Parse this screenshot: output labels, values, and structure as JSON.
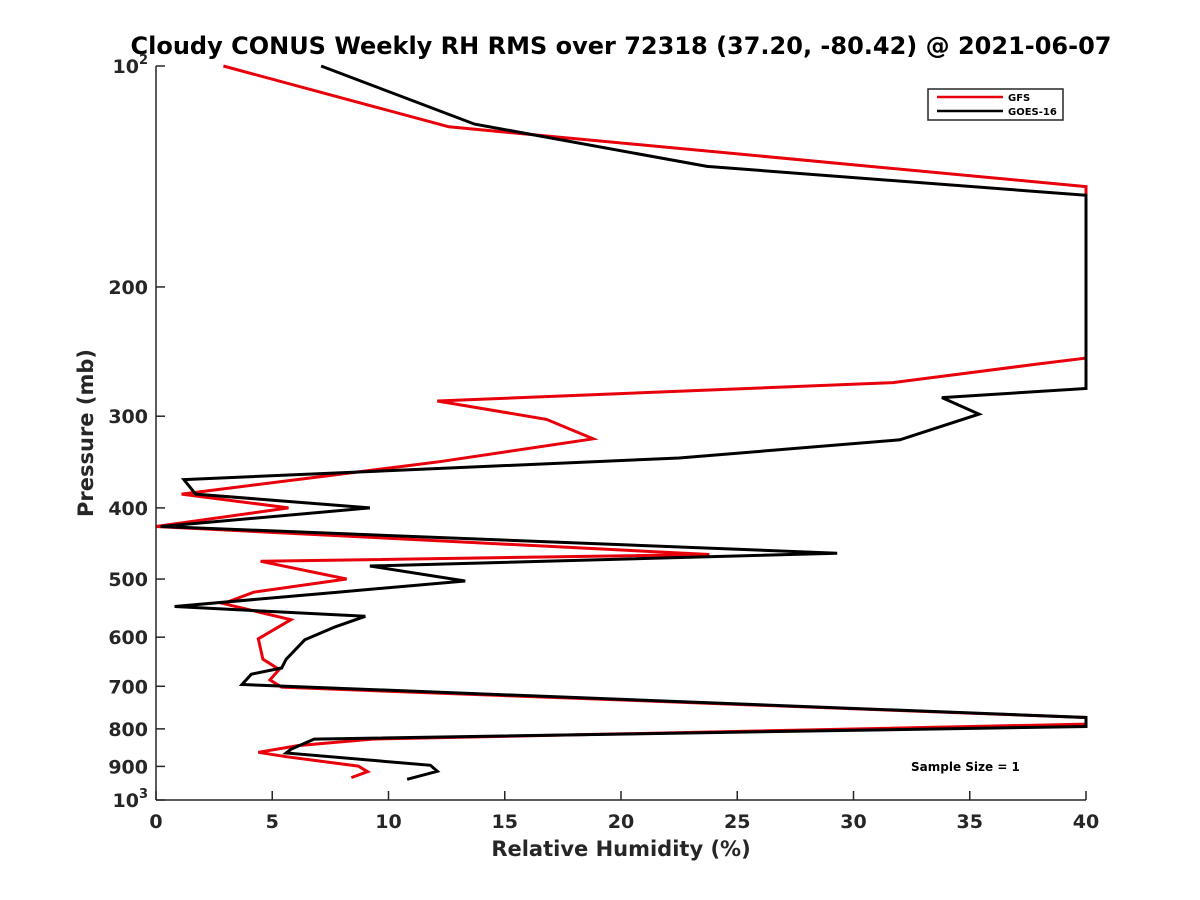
{
  "chart_data": {
    "type": "line",
    "title": "Cloudy CONUS Weekly RH RMS over 72318 (37.20, -80.42) @ 2021-06-07",
    "xlabel": "Relative Humidity (%)",
    "ylabel": "Pressure (mb)",
    "xlim": [
      0,
      40
    ],
    "ylim": [
      100,
      1000
    ],
    "yscale": "log",
    "y_reversed": true,
    "x_ticks": [
      0,
      5,
      10,
      15,
      20,
      25,
      30,
      35,
      40
    ],
    "x_tick_labels": [
      "0",
      "5",
      "10",
      "15",
      "20",
      "25",
      "30",
      "35",
      "40"
    ],
    "y_ticks": [
      100,
      200,
      300,
      400,
      500,
      600,
      700,
      800,
      900,
      1000
    ],
    "y_tick_labels": [
      {
        "base": "10",
        "exp": "2"
      },
      {
        "base": "200",
        "exp": ""
      },
      {
        "base": "300",
        "exp": ""
      },
      {
        "base": "400",
        "exp": ""
      },
      {
        "base": "500",
        "exp": ""
      },
      {
        "base": "600",
        "exp": ""
      },
      {
        "base": "700",
        "exp": ""
      },
      {
        "base": "800",
        "exp": ""
      },
      {
        "base": "900",
        "exp": ""
      },
      {
        "base": "10",
        "exp": "3"
      }
    ],
    "legend_position": "top-right",
    "annotation": "Sample Size = 1",
    "series": [
      {
        "name": "GFS",
        "color": "#e8000b",
        "points": [
          [
            2.9,
            100
          ],
          [
            12.6,
            121
          ],
          [
            40,
            146
          ],
          [
            40,
            250
          ],
          [
            37.8,
            255
          ],
          [
            31.7,
            270
          ],
          [
            12.1,
            286
          ],
          [
            16.8,
            303
          ],
          [
            18.8,
            322
          ],
          [
            12.2,
            346
          ],
          [
            1.1,
            383
          ],
          [
            5.7,
            400
          ],
          [
            0,
            424
          ],
          [
            23.8,
            463
          ],
          [
            4.5,
            473
          ],
          [
            8.2,
            500
          ],
          [
            4.2,
            521
          ],
          [
            2.9,
            540
          ],
          [
            5.8,
            568
          ],
          [
            4.4,
            603
          ],
          [
            4.6,
            643
          ],
          [
            5.3,
            664
          ],
          [
            4.9,
            686
          ],
          [
            5.4,
            702
          ],
          [
            40,
            772
          ],
          [
            40,
            788
          ],
          [
            9.3,
            826
          ],
          [
            6.1,
            843
          ],
          [
            4.4,
            861
          ],
          [
            5.6,
            873
          ],
          [
            8.7,
            899
          ],
          [
            9.1,
            915
          ],
          [
            8.4,
            932
          ]
        ]
      },
      {
        "name": "GOES-16",
        "color": "#000000",
        "points": [
          [
            7.1,
            100
          ],
          [
            13.7,
            120
          ],
          [
            23.7,
            137
          ],
          [
            40,
            150
          ],
          [
            40,
            275
          ],
          [
            33.8,
            283
          ],
          [
            35.4,
            298
          ],
          [
            32,
            323
          ],
          [
            22.5,
            342
          ],
          [
            1.2,
            366
          ],
          [
            1.7,
            383
          ],
          [
            9.2,
            400
          ],
          [
            0.2,
            424
          ],
          [
            29.3,
            461
          ],
          [
            9.2,
            480
          ],
          [
            13.3,
            503
          ],
          [
            7.8,
            521
          ],
          [
            0.8,
            545
          ],
          [
            9,
            562
          ],
          [
            7.7,
            581
          ],
          [
            6.4,
            605
          ],
          [
            5.6,
            643
          ],
          [
            5.4,
            661
          ],
          [
            4.1,
            674
          ],
          [
            3.7,
            696
          ],
          [
            40,
            772
          ],
          [
            40,
            794
          ],
          [
            6.8,
            826
          ],
          [
            5.8,
            853
          ],
          [
            5.6,
            863
          ],
          [
            11.8,
            897
          ],
          [
            12.1,
            914
          ],
          [
            10.8,
            937
          ]
        ]
      }
    ]
  }
}
